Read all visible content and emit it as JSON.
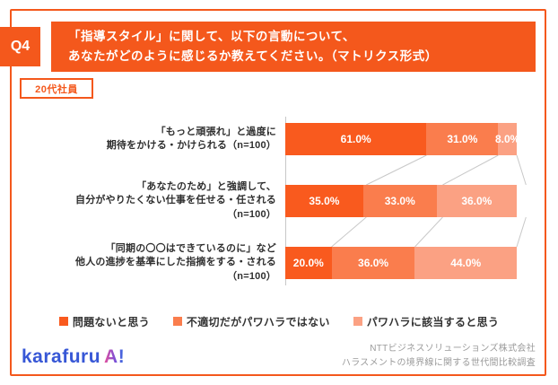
{
  "header": {
    "badge": "Q4",
    "title_line1": "「指導スタイル」に関して、以下の言動について、",
    "title_line2": "あなたがどのように感じるか教えてください。（マトリクス形式）"
  },
  "group_label": "20代社員",
  "colors": {
    "primary_orange": "#f4581c",
    "segment_colors": [
      "#f95a1e",
      "#fa7d4d",
      "#fba183"
    ],
    "connector_gray": "#c8c8c8"
  },
  "chart_data": {
    "type": "bar",
    "orientation": "horizontal",
    "stacked": true,
    "xlim": [
      0,
      100
    ],
    "value_suffix": "%",
    "categories": [
      {
        "lines": [
          "「もっと頑張れ」と過度に",
          "期待をかける・かけられる（n=100）"
        ]
      },
      {
        "lines": [
          "「あなたのため」と強調して、",
          "自分がやりたくない仕事を任せる・任される",
          "（n=100）"
        ]
      },
      {
        "lines": [
          "「同期の〇〇はできているのに」など",
          "他人の進捗を基準にした指摘をする・される",
          "（n=100）"
        ]
      }
    ],
    "series": [
      {
        "name": "問題ないと思う",
        "color": "#f95a1e",
        "values": [
          61.0,
          35.0,
          20.0
        ]
      },
      {
        "name": "不適切だがパワハラではない",
        "color": "#fa7d4d",
        "values": [
          31.0,
          33.0,
          36.0
        ]
      },
      {
        "name": "パワハラに該当すると思う",
        "color": "#fba183",
        "values": [
          8.0,
          36.0,
          44.0
        ]
      }
    ]
  },
  "legend": {
    "items": [
      "問題ないと思う",
      "不適切だがパワハラではない",
      "パワハラに該当すると思う"
    ]
  },
  "footer": {
    "logo_text": "karafuru",
    "logo_suffix": "A!",
    "credit_line1": "NTTビジネスソリューションズ株式会社",
    "credit_line2": "ハラスメントの境界線に関する世代間比較調査"
  }
}
